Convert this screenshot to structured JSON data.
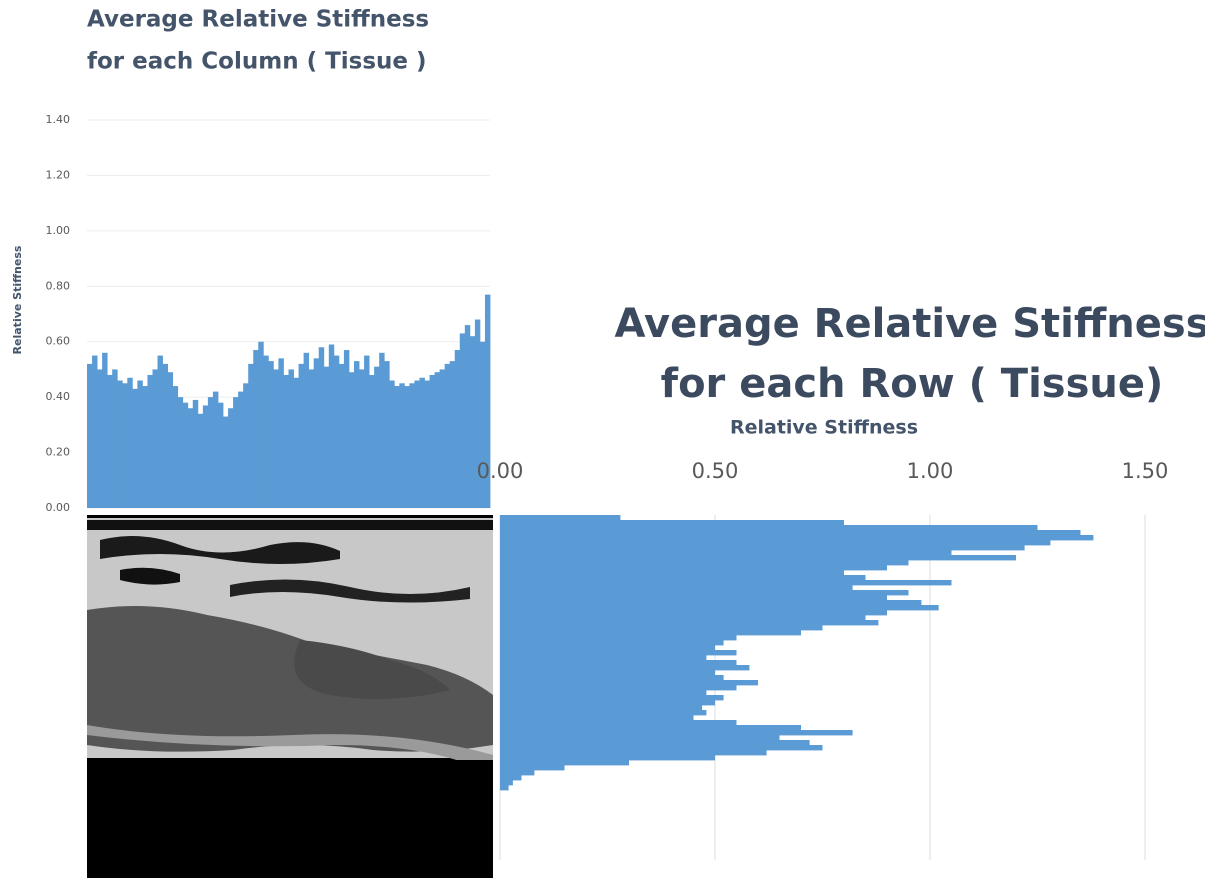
{
  "chart_data": [
    {
      "type": "bar",
      "orientation": "vertical",
      "title": [
        "Average Relative Stiffness",
        "for each Column ( Tissue )"
      ],
      "y_label": "Relative Stiffness",
      "color": "#5b9bd5",
      "grid": true,
      "ylim": [
        0,
        1.4
      ],
      "yticks": [
        {
          "value": 0,
          "label": "0.00"
        },
        {
          "value": 0.2,
          "label": "0.20"
        },
        {
          "value": 0.4,
          "label": "0.40"
        },
        {
          "value": 0.6,
          "label": "0.60"
        },
        {
          "value": 0.8,
          "label": "0.80"
        },
        {
          "value": 1,
          "label": "1.00"
        },
        {
          "value": 1.2,
          "label": "1.20"
        },
        {
          "value": 1.4,
          "label": "1.40"
        }
      ],
      "values": [
        0.52,
        0.55,
        0.5,
        0.56,
        0.48,
        0.5,
        0.46,
        0.45,
        0.47,
        0.43,
        0.46,
        0.44,
        0.48,
        0.5,
        0.55,
        0.52,
        0.49,
        0.44,
        0.4,
        0.38,
        0.36,
        0.39,
        0.34,
        0.37,
        0.4,
        0.42,
        0.38,
        0.33,
        0.36,
        0.4,
        0.42,
        0.45,
        0.52,
        0.57,
        0.6,
        0.55,
        0.53,
        0.5,
        0.54,
        0.48,
        0.5,
        0.47,
        0.52,
        0.56,
        0.5,
        0.54,
        0.58,
        0.51,
        0.59,
        0.55,
        0.52,
        0.57,
        0.49,
        0.53,
        0.5,
        0.55,
        0.48,
        0.51,
        0.56,
        0.53,
        0.46,
        0.44,
        0.45,
        0.44,
        0.45,
        0.46,
        0.47,
        0.46,
        0.48,
        0.49,
        0.5,
        0.52,
        0.53,
        0.57,
        0.63,
        0.66,
        0.62,
        0.68,
        0.6,
        0.77
      ]
    },
    {
      "type": "bar",
      "orientation": "horizontal",
      "title": [
        "Average Relative Stiffness",
        "for each Row ( Tissue)"
      ],
      "x_label": "Relative Stiffness",
      "color": "#5b9bd5",
      "grid": true,
      "xlim": [
        0,
        1.6
      ],
      "xticks": [
        {
          "value": 0,
          "label": "0.00"
        },
        {
          "value": 0.5,
          "label": "0.50"
        },
        {
          "value": 1,
          "label": "1.00"
        },
        {
          "value": 1.5,
          "label": "1.50"
        }
      ],
      "values": [
        0.28,
        0.8,
        1.25,
        1.35,
        1.38,
        1.28,
        1.22,
        1.05,
        1.2,
        0.95,
        0.9,
        0.8,
        0.85,
        1.05,
        0.82,
        0.95,
        0.9,
        0.98,
        1.02,
        0.9,
        0.85,
        0.88,
        0.75,
        0.7,
        0.55,
        0.52,
        0.5,
        0.55,
        0.48,
        0.55,
        0.58,
        0.5,
        0.52,
        0.6,
        0.55,
        0.48,
        0.52,
        0.5,
        0.47,
        0.48,
        0.45,
        0.55,
        0.7,
        0.82,
        0.65,
        0.72,
        0.75,
        0.62,
        0.5,
        0.3,
        0.15,
        0.08,
        0.05,
        0.03,
        0.02
      ]
    }
  ]
}
